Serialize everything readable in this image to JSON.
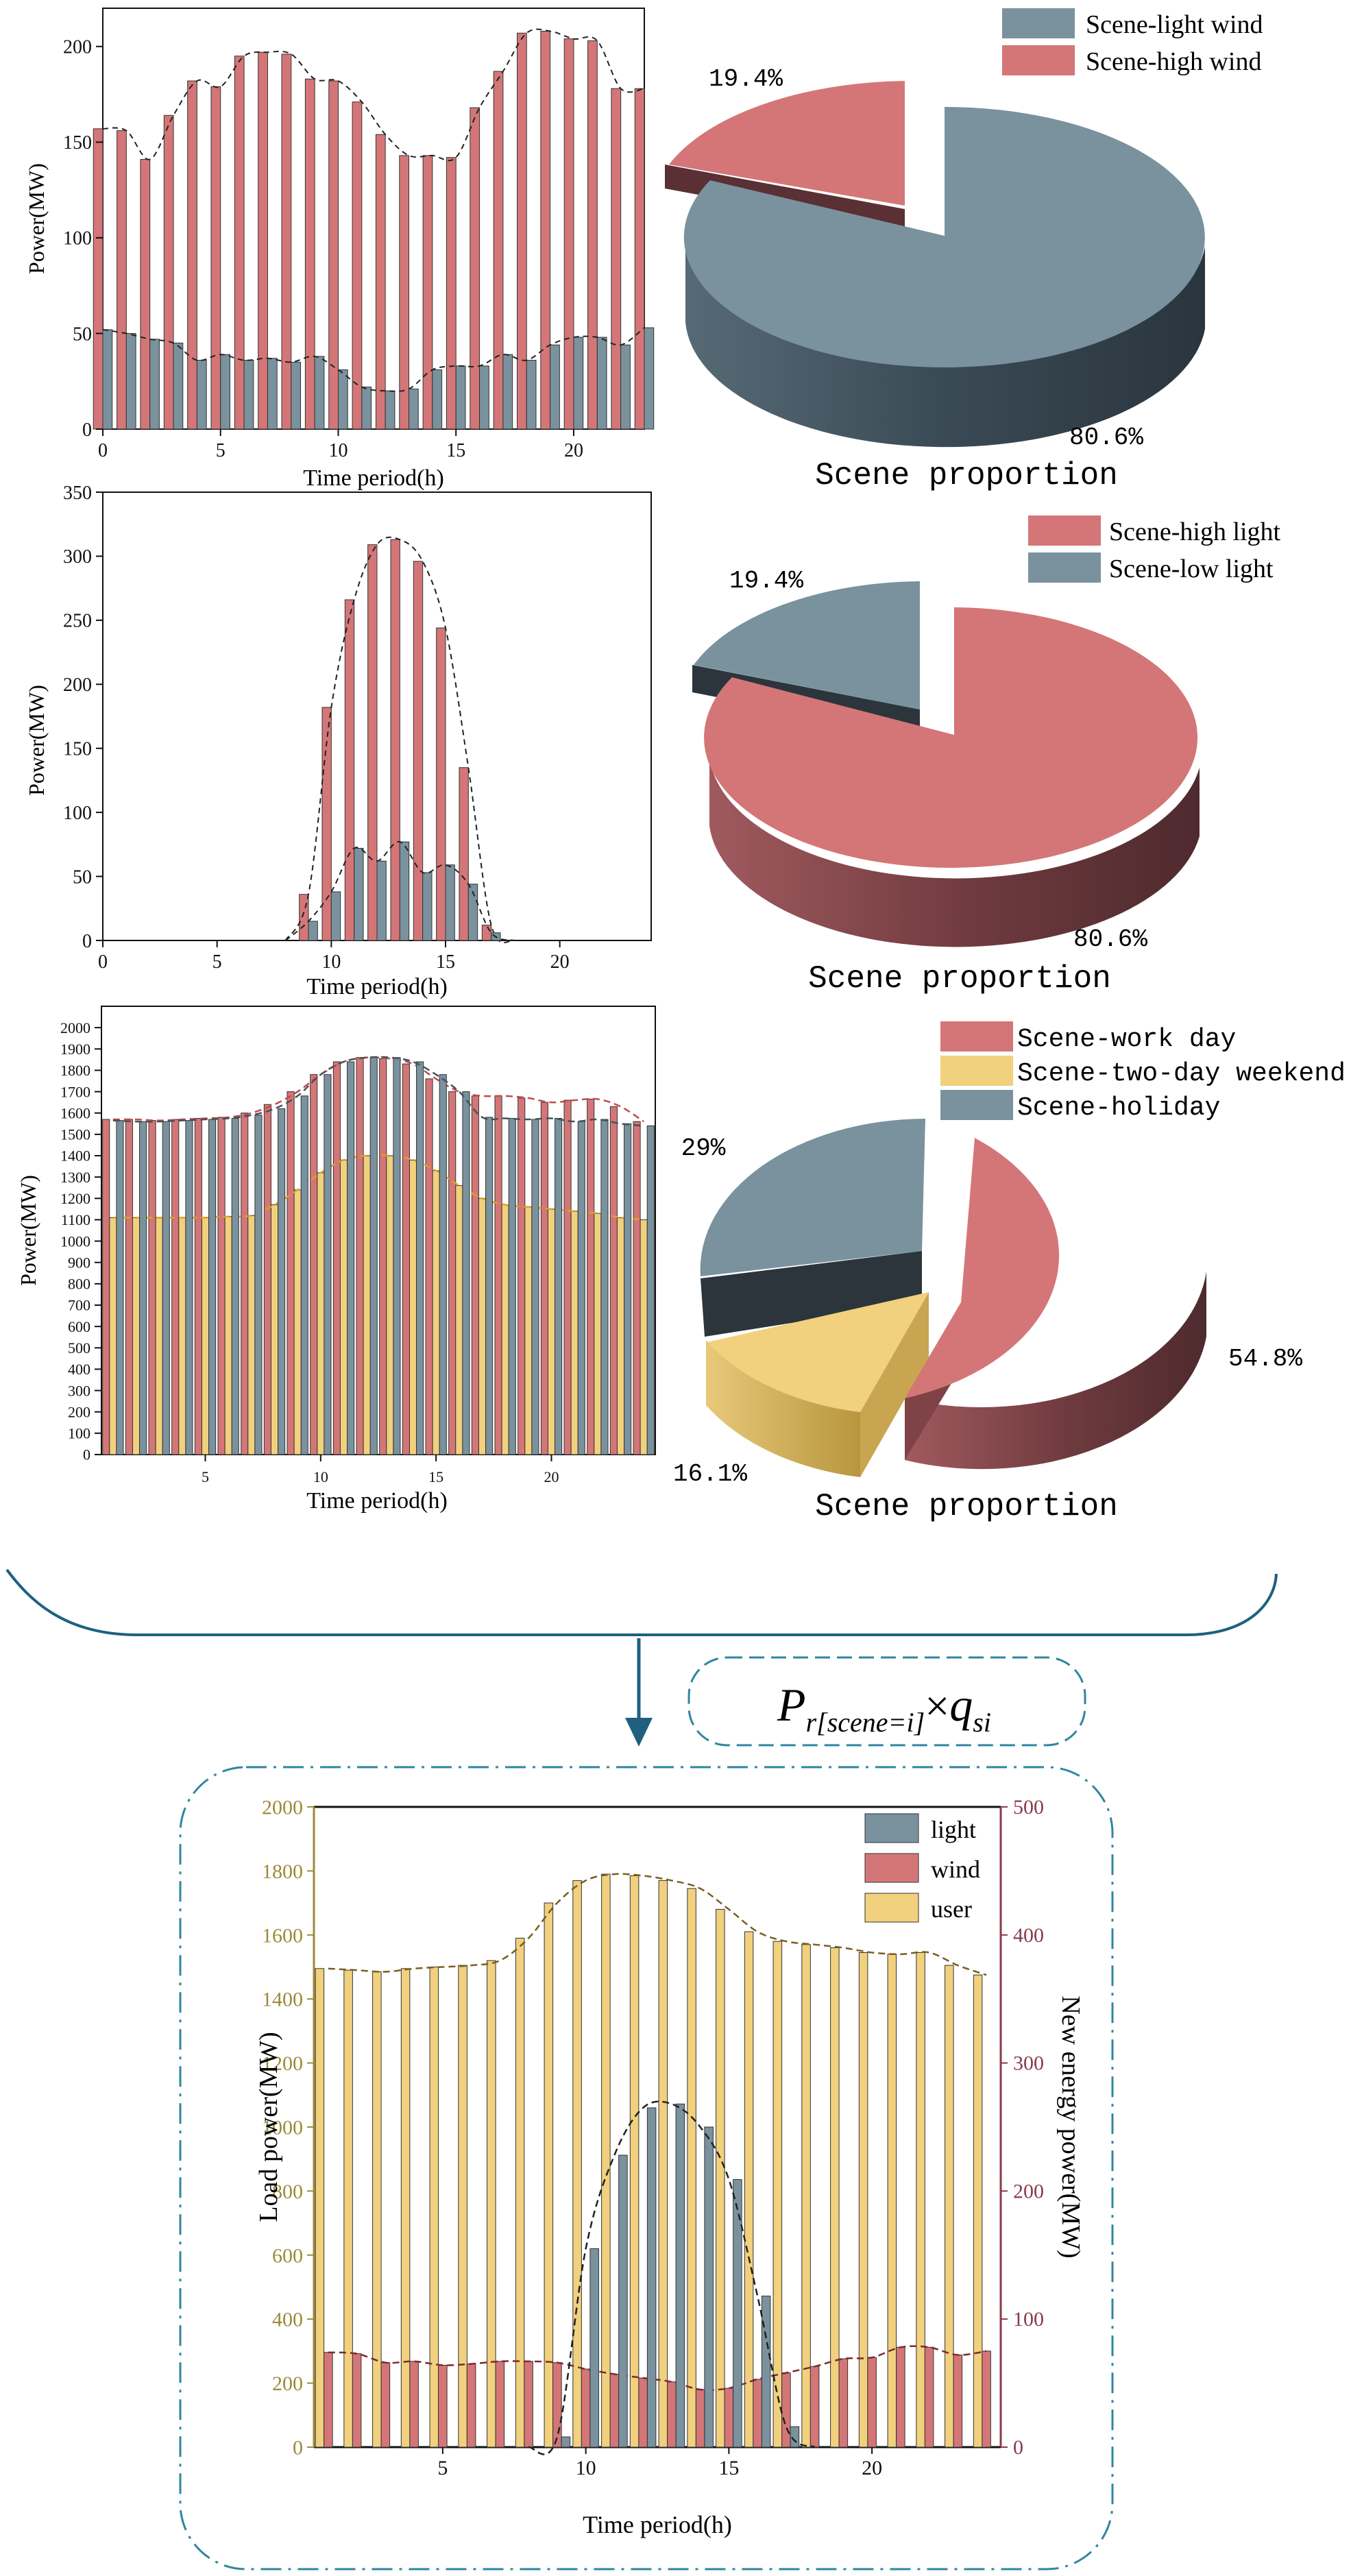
{
  "colors": {
    "wind_high_red": "#D47677",
    "wind_light_blue": "#7A929E",
    "light_high_red": "#D47677",
    "light_low_blue": "#7A929E",
    "work_red": "#D47677",
    "weekend_yellow": "#F1D07E",
    "holiday_blue": "#7A929E",
    "user_yellow": "#F1D07E",
    "light_bar": "#7A929E",
    "wind_bar": "#D47677",
    "axis_gold": "#9E8A3A",
    "axis_maroon": "#8A3A4A",
    "brace_teal": "#1F6080",
    "frame_teal": "#2F86A0"
  },
  "chart_data": [
    {
      "id": "wind_bars",
      "type": "bar",
      "title": "",
      "xlabel": "Time period(h)",
      "ylabel": "Power(MW)",
      "xlim": [
        0,
        23
      ],
      "ylim": [
        0,
        220
      ],
      "xticks": [
        "0",
        "5",
        "10",
        "15",
        "20"
      ],
      "xtick_values": [
        0,
        5,
        10,
        15,
        20
      ],
      "yticks": [
        "0",
        "50",
        "100",
        "150",
        "200"
      ],
      "ytick_values": [
        0,
        50,
        100,
        150,
        200
      ],
      "x": [
        0,
        1,
        2,
        3,
        4,
        5,
        6,
        7,
        8,
        9,
        10,
        11,
        12,
        13,
        14,
        15,
        16,
        17,
        18,
        19,
        20,
        21,
        22,
        23
      ],
      "series": [
        {
          "name": "Scene-high wind",
          "color": "#D47677",
          "values": [
            157,
            156,
            141,
            164,
            182,
            179,
            195,
            197,
            196,
            183,
            182,
            171,
            154,
            143,
            143,
            142,
            168,
            187,
            207,
            208,
            204,
            203,
            178,
            178
          ]
        },
        {
          "name": "Scene-light wind",
          "color": "#7A929E",
          "values": [
            52,
            50,
            47,
            45,
            36,
            39,
            36,
            37,
            35,
            38,
            31,
            22,
            20,
            21,
            31,
            33,
            33,
            39,
            36,
            44,
            48,
            48,
            44,
            53
          ]
        }
      ]
    },
    {
      "id": "wind_pie",
      "type": "pie",
      "title": "Scene proportion",
      "legend_position": "top-right",
      "slices": [
        {
          "name": "Scene-light wind",
          "value": 80.6,
          "label": "80.6%",
          "color": "#7A929E"
        },
        {
          "name": "Scene-high wind",
          "value": 19.4,
          "label": "19.4%",
          "color": "#D47677"
        }
      ]
    },
    {
      "id": "light_bars",
      "type": "bar",
      "title": "",
      "xlabel": "Time period(h)",
      "ylabel": "Power(MW)",
      "xlim": [
        0,
        24
      ],
      "ylim": [
        0,
        350
      ],
      "xticks": [
        "0",
        "5",
        "10",
        "15",
        "20"
      ],
      "xtick_values": [
        0,
        5,
        10,
        15,
        20
      ],
      "yticks": [
        "0",
        "50",
        "100",
        "150",
        "200",
        "250",
        "300",
        "350"
      ],
      "ytick_values": [
        0,
        50,
        100,
        150,
        200,
        250,
        300,
        350
      ],
      "x": [
        9,
        10,
        11,
        12,
        13,
        14,
        15,
        16,
        17
      ],
      "series": [
        {
          "name": "Scene-high light",
          "color": "#D47677",
          "values": [
            36,
            182,
            266,
            309,
            313,
            296,
            244,
            135,
            12
          ]
        },
        {
          "name": "Scene-low light",
          "color": "#7A929E",
          "values": [
            15,
            38,
            72,
            62,
            77,
            53,
            59,
            44,
            6
          ]
        }
      ]
    },
    {
      "id": "light_pie",
      "type": "pie",
      "title": "Scene proportion",
      "legend_position": "top-right",
      "slices": [
        {
          "name": "Scene-high light",
          "value": 80.6,
          "label": "80.6%",
          "color": "#D47677"
        },
        {
          "name": "Scene-low light",
          "value": 19.4,
          "label": "19.4%",
          "color": "#7A929E"
        }
      ]
    },
    {
      "id": "load_bars",
      "type": "bar",
      "title": "",
      "xlabel": "Time period(h)",
      "ylabel": "Power(MW)",
      "xlim": [
        0.5,
        24.5
      ],
      "ylim": [
        0,
        2100
      ],
      "xticks": [
        "5",
        "10",
        "15",
        "20"
      ],
      "xtick_values": [
        5,
        10,
        15,
        20
      ],
      "yticks": [
        "0",
        "100",
        "200",
        "300",
        "400",
        "500",
        "600",
        "700",
        "800",
        "900",
        "1000",
        "1100",
        "1200",
        "1300",
        "1400",
        "1500",
        "1600",
        "1700",
        "1800",
        "1900",
        "2000"
      ],
      "ytick_values": [
        0,
        100,
        200,
        300,
        400,
        500,
        600,
        700,
        800,
        900,
        1000,
        1100,
        1200,
        1300,
        1400,
        1500,
        1600,
        1700,
        1800,
        1900,
        2000
      ],
      "x": [
        1,
        2,
        3,
        4,
        5,
        6,
        7,
        8,
        9,
        10,
        11,
        12,
        13,
        14,
        15,
        16,
        17,
        18,
        19,
        20,
        21,
        22,
        23,
        24
      ],
      "series": [
        {
          "name": "Scene-work day",
          "color": "#D47677",
          "values": [
            1570,
            1570,
            1565,
            1570,
            1575,
            1580,
            1600,
            1640,
            1700,
            1780,
            1840,
            1860,
            1855,
            1830,
            1760,
            1700,
            1680,
            1680,
            1670,
            1650,
            1660,
            1665,
            1630,
            1560
          ]
        },
        {
          "name": "Scene-two-day weekend",
          "color": "#F1D07E",
          "values": [
            1110,
            1110,
            1110,
            1110,
            1110,
            1115,
            1120,
            1170,
            1240,
            1320,
            1380,
            1400,
            1400,
            1380,
            1330,
            1260,
            1200,
            1170,
            1160,
            1150,
            1140,
            1130,
            1110,
            1100
          ]
        },
        {
          "name": "Scene-holiday",
          "color": "#7A929E",
          "values": [
            1565,
            1560,
            1560,
            1565,
            1570,
            1575,
            1590,
            1620,
            1680,
            1780,
            1840,
            1860,
            1860,
            1840,
            1780,
            1700,
            1580,
            1575,
            1570,
            1575,
            1560,
            1570,
            1550,
            1540
          ]
        }
      ]
    },
    {
      "id": "load_pie",
      "type": "pie",
      "title": "Scene proportion",
      "legend_position": "top-right",
      "slices": [
        {
          "name": "Scene-work day",
          "value": 54.8,
          "label": "54.8%",
          "color": "#D47677"
        },
        {
          "name": "Scene-two-day weekend",
          "value": 16.1,
          "label": "16.1%",
          "color": "#F1D07E"
        },
        {
          "name": "Scene-holiday",
          "value": 29,
          "label": "29%",
          "color": "#7A929E"
        }
      ]
    },
    {
      "id": "combined",
      "type": "bar",
      "title": "",
      "xlabel": "Time period(h)",
      "ylabel": "Load power(MW)",
      "y2label": "New energy power(MW)",
      "xlim": [
        0.5,
        24.5
      ],
      "ylim": [
        0,
        2000
      ],
      "y2lim": [
        0,
        500
      ],
      "xticks": [
        "5",
        "10",
        "15",
        "20"
      ],
      "xtick_values": [
        5,
        10,
        15,
        20
      ],
      "yticks": [
        "0",
        "200",
        "400",
        "600",
        "800",
        "1000",
        "1200",
        "1400",
        "1600",
        "1800",
        "2000"
      ],
      "ytick_values": [
        0,
        200,
        400,
        600,
        800,
        1000,
        1200,
        1400,
        1600,
        1800,
        2000
      ],
      "y2ticks": [
        "0",
        "100",
        "200",
        "300",
        "400",
        "500"
      ],
      "y2tick_values": [
        0,
        100,
        200,
        300,
        400,
        500
      ],
      "legend_position": "top-right",
      "x": [
        1,
        2,
        3,
        4,
        5,
        6,
        7,
        8,
        9,
        10,
        11,
        12,
        13,
        14,
        15,
        16,
        17,
        18,
        19,
        20,
        21,
        22,
        23,
        24
      ],
      "series": [
        {
          "name": "user",
          "axis": "left",
          "color": "#F1D07E",
          "values": [
            1495,
            1490,
            1485,
            1495,
            1500,
            1505,
            1520,
            1590,
            1700,
            1770,
            1790,
            1785,
            1770,
            1745,
            1680,
            1610,
            1580,
            1570,
            1560,
            1545,
            1540,
            1545,
            1505,
            1475
          ]
        },
        {
          "name": "wind",
          "axis": "right",
          "color": "#D47677",
          "values": [
            74,
            73,
            66,
            67,
            64,
            65,
            67,
            67,
            66,
            61,
            57,
            54,
            51,
            45,
            46,
            53,
            58,
            63,
            69,
            70,
            78,
            78,
            72,
            75
          ]
        },
        {
          "name": "light",
          "axis": "right",
          "color": "#7A929E",
          "values": [
            0,
            0,
            0,
            0,
            0,
            0,
            0,
            0,
            8,
            155,
            228,
            265,
            268,
            250,
            209,
            118,
            16,
            0,
            0,
            0,
            0,
            0,
            0,
            0
          ]
        }
      ]
    }
  ],
  "formula": {
    "main": "P",
    "sub": "r[scene=i]",
    "times": "×",
    "q": "q",
    "q_sub": "si"
  }
}
